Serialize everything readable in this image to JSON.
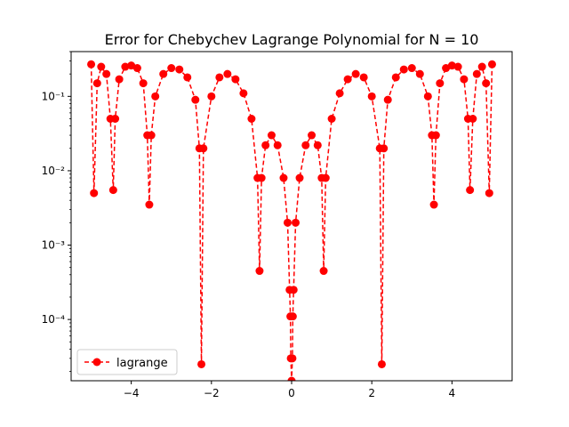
{
  "chart_data": {
    "type": "line",
    "title": "Error for Chebychev Lagrange Polynomial for N = 10",
    "xlabel": "",
    "ylabel": "",
    "xlim": [
      -5.5,
      5.5
    ],
    "ylim": [
      1.5e-05,
      0.4
    ],
    "yscale": "log",
    "grid": false,
    "legend": {
      "placement": "lower-left",
      "entries": [
        "lagrange"
      ]
    },
    "x_ticks": [
      {
        "value": -4,
        "label": "−4"
      },
      {
        "value": -2,
        "label": "−2"
      },
      {
        "value": 0,
        "label": "0"
      },
      {
        "value": 2,
        "label": "2"
      },
      {
        "value": 4,
        "label": "4"
      }
    ],
    "y_ticks": [
      {
        "value": 0.1,
        "label": "10⁻¹"
      },
      {
        "value": 0.01,
        "label": "10⁻²"
      },
      {
        "value": 0.001,
        "label": "10⁻³"
      },
      {
        "value": 0.0001,
        "label": "10⁻⁴"
      }
    ],
    "series": [
      {
        "name": "lagrange",
        "color": "#ff0000",
        "line_style": "dashed",
        "marker": "circle",
        "x": [
          -5.0,
          -4.93,
          -4.85,
          -4.75,
          -4.62,
          -4.52,
          -4.45,
          -4.4,
          -4.3,
          -4.15,
          -4.0,
          -3.85,
          -3.7,
          -3.6,
          -3.55,
          -3.5,
          -3.4,
          -3.2,
          -3.0,
          -2.8,
          -2.6,
          -2.4,
          -2.3,
          -2.25,
          -2.2,
          -2.0,
          -1.8,
          -1.6,
          -1.4,
          -1.2,
          -1.0,
          -0.85,
          -0.8,
          -0.75,
          -0.65,
          -0.5,
          -0.35,
          -0.2,
          -0.1,
          -0.05,
          -0.03,
          -0.02,
          0.0,
          0.02,
          0.03,
          0.05,
          0.1,
          0.2,
          0.35,
          0.5,
          0.65,
          0.75,
          0.8,
          0.85,
          1.0,
          1.2,
          1.4,
          1.6,
          1.8,
          2.0,
          2.2,
          2.25,
          2.3,
          2.4,
          2.6,
          2.8,
          3.0,
          3.2,
          3.4,
          3.5,
          3.55,
          3.6,
          3.7,
          3.85,
          4.0,
          4.15,
          4.3,
          4.4,
          4.45,
          4.52,
          4.62,
          4.75,
          4.85,
          4.93,
          5.0
        ],
        "y": [
          0.27,
          0.005,
          0.15,
          0.25,
          0.2,
          0.05,
          0.0055,
          0.05,
          0.17,
          0.25,
          0.26,
          0.24,
          0.15,
          0.03,
          0.0035,
          0.03,
          0.1,
          0.2,
          0.24,
          0.23,
          0.18,
          0.09,
          0.02,
          2.5e-05,
          0.02,
          0.1,
          0.18,
          0.2,
          0.17,
          0.11,
          0.05,
          0.008,
          0.00045,
          0.008,
          0.022,
          0.03,
          0.022,
          0.008,
          0.002,
          0.00025,
          0.00011,
          3e-05,
          1.5e-05,
          3e-05,
          0.00011,
          0.00025,
          0.002,
          0.008,
          0.022,
          0.03,
          0.022,
          0.008,
          0.00045,
          0.008,
          0.05,
          0.11,
          0.17,
          0.2,
          0.18,
          0.1,
          0.02,
          2.5e-05,
          0.02,
          0.09,
          0.18,
          0.23,
          0.24,
          0.2,
          0.1,
          0.03,
          0.0035,
          0.03,
          0.15,
          0.24,
          0.26,
          0.25,
          0.17,
          0.05,
          0.0055,
          0.05,
          0.2,
          0.25,
          0.15,
          0.005,
          0.27
        ]
      }
    ]
  }
}
